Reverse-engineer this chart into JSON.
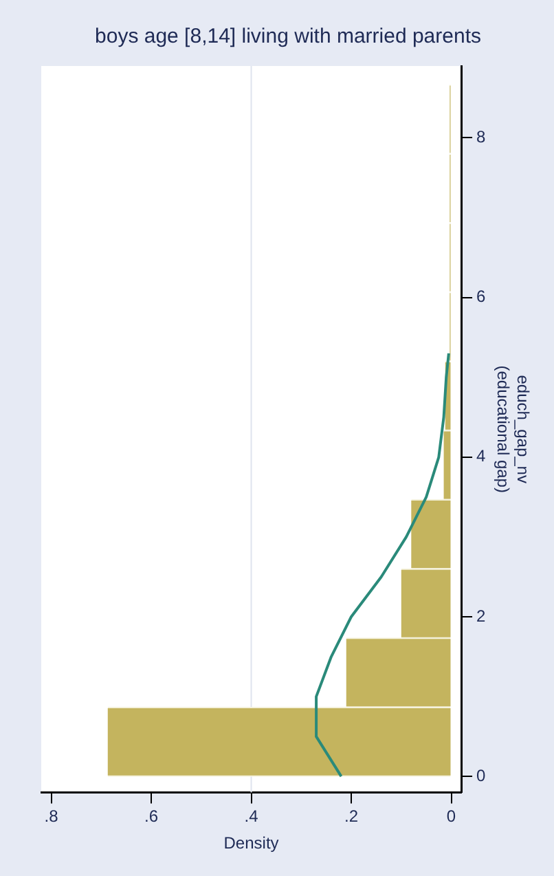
{
  "chart_data": {
    "type": "histogram",
    "orientation": "horizontal",
    "title": "boys age [8,14] living with married parents",
    "xlabel": "Density",
    "ylabel": "educh_gap_nv\n(educational gap)",
    "bins": [
      0,
      0.867,
      1.733,
      2.6,
      3.467,
      4.333,
      5.2,
      6.067,
      6.933,
      7.8,
      8.667
    ],
    "values": [
      0.687,
      0.21,
      0.1,
      0.08,
      0.015,
      0.012,
      0.003,
      0.003,
      0.003,
      0.003
    ],
    "color": "#c4b45e",
    "series": [
      {
        "type": "line",
        "color": "#2a8a7a",
        "x": [
          0,
          0.5,
          1,
          1.5,
          2,
          2.5,
          3,
          3.5,
          4,
          4.5,
          5,
          5.3
        ],
        "values": [
          0.22,
          0.27,
          0.27,
          0.24,
          0.2,
          0.14,
          0.09,
          0.05,
          0.025,
          0.015,
          0.01,
          0.005
        ]
      }
    ],
    "xlim": [
      0.82,
      -0.02
    ],
    "ylim": [
      -0.2,
      8.9
    ],
    "yticks": [
      0,
      2,
      4,
      6,
      8
    ],
    "xticks": [
      0,
      {
        "value": 0.2,
        "label": ".2"
      },
      {
        "value": 0.4,
        "label": ".4"
      },
      {
        "value": 0.6,
        "label": ".6"
      },
      {
        "value": 0.8,
        "label": ".8"
      }
    ],
    "ref_lines": [
      {
        "axis": "x",
        "value": 0.4,
        "color": "#dfe4ee"
      }
    ],
    "legend": false
  }
}
